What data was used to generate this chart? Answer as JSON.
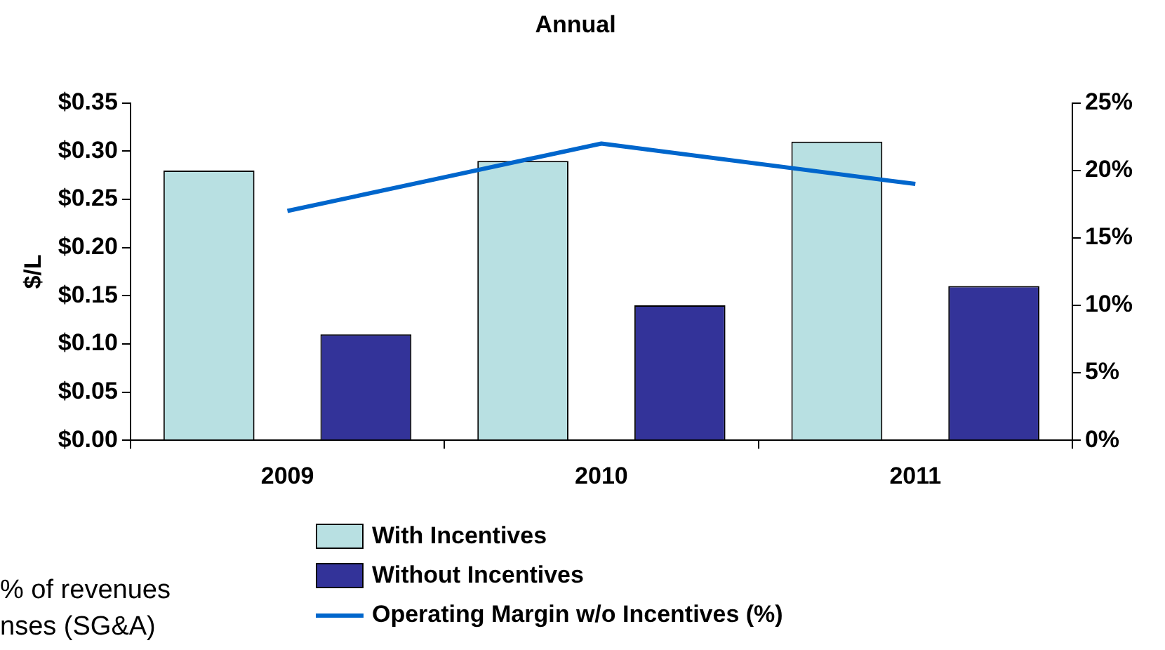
{
  "chart_data": {
    "type": "bar",
    "title": "Annual",
    "ylabel": "$/L",
    "categories": [
      "2009",
      "2010",
      "2011"
    ],
    "series": [
      {
        "name": "With Incentives",
        "color": "#b8e0e2",
        "values": [
          0.28,
          0.29,
          0.31
        ]
      },
      {
        "name": "Without Incentives",
        "color": "#333399",
        "values": [
          0.11,
          0.14,
          0.16
        ]
      },
      {
        "name": "Operating Margin w/o Incentives (%)",
        "type": "line",
        "axis": "y2",
        "color": "#0066cc",
        "values": [
          17,
          22,
          19
        ]
      }
    ],
    "ylim": [
      0,
      0.35
    ],
    "yticks": [
      {
        "value": 0,
        "label": "$0.00"
      },
      {
        "value": 0.05,
        "label": "$0.05"
      },
      {
        "value": 0.1,
        "label": "$0.10"
      },
      {
        "value": 0.15,
        "label": "$0.15"
      },
      {
        "value": 0.2,
        "label": "$0.20"
      },
      {
        "value": 0.25,
        "label": "$0.25"
      },
      {
        "value": 0.3,
        "label": "$0.30"
      },
      {
        "value": 0.35,
        "label": "$0.35"
      }
    ],
    "y2lim": [
      0,
      25
    ],
    "y2ticks": [
      {
        "value": 0,
        "label": "0%"
      },
      {
        "value": 5,
        "label": "5%"
      },
      {
        "value": 10,
        "label": "10%"
      },
      {
        "value": 15,
        "label": "15%"
      },
      {
        "value": 20,
        "label": "20%"
      },
      {
        "value": 25,
        "label": "25%"
      }
    ],
    "grid": false,
    "legend": "bottom",
    "marker": "none",
    "annotations": [
      "% of revenues",
      "nses (SG&A)"
    ]
  }
}
